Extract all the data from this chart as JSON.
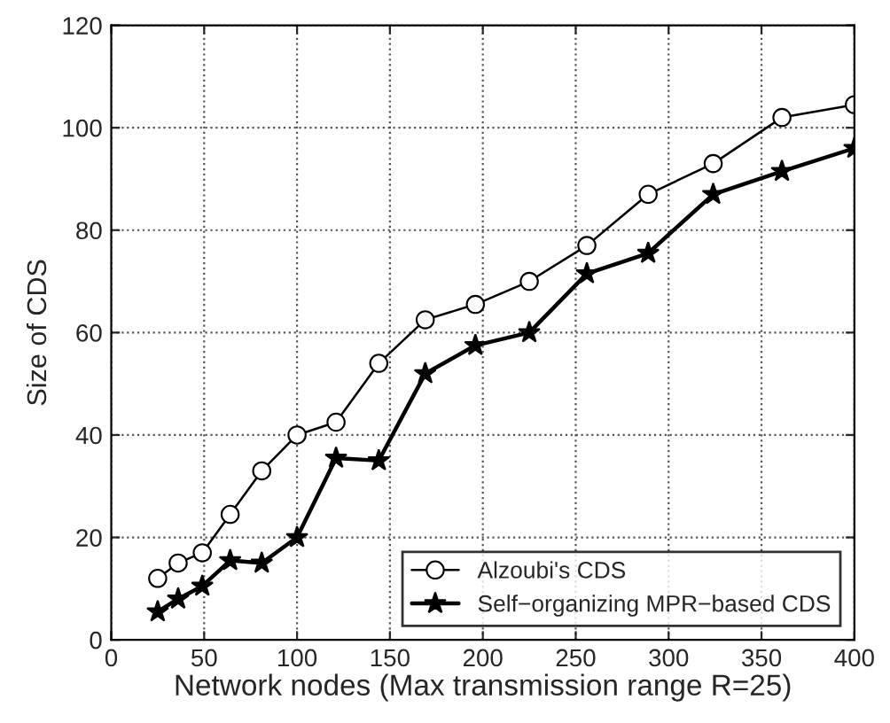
{
  "chart_data": {
    "type": "line",
    "xlabel": "Network nodes (Max transmission range R=25)",
    "ylabel": "Size of CDS",
    "x": [
      25,
      36,
      49,
      64,
      81,
      100,
      121,
      144,
      169,
      196,
      225,
      256,
      289,
      324,
      361,
      400
    ],
    "series": [
      {
        "name": "Alzoubi's CDS",
        "color": "#000000",
        "marker": "circle",
        "values": [
          12,
          15,
          17,
          24.5,
          33,
          40,
          42.5,
          54,
          62.5,
          65.5,
          70,
          77,
          87,
          93,
          102,
          104.5
        ]
      },
      {
        "name": "Self−organizing MPR−based CDS",
        "color": "#000000",
        "marker": "star",
        "values": [
          5.5,
          8,
          10.5,
          15.5,
          15,
          20,
          35.5,
          35,
          52,
          57.5,
          60,
          71.5,
          75.5,
          87,
          91.5,
          96
        ]
      }
    ],
    "xlim": [
      0,
      400
    ],
    "xticks": [
      0,
      50,
      100,
      150,
      200,
      250,
      300,
      350,
      400
    ],
    "ylim": [
      0,
      120
    ],
    "yticks": [
      0,
      20,
      40,
      60,
      80,
      100,
      120
    ],
    "grid": true,
    "legend": "bottom right",
    "line_style": "solid"
  }
}
